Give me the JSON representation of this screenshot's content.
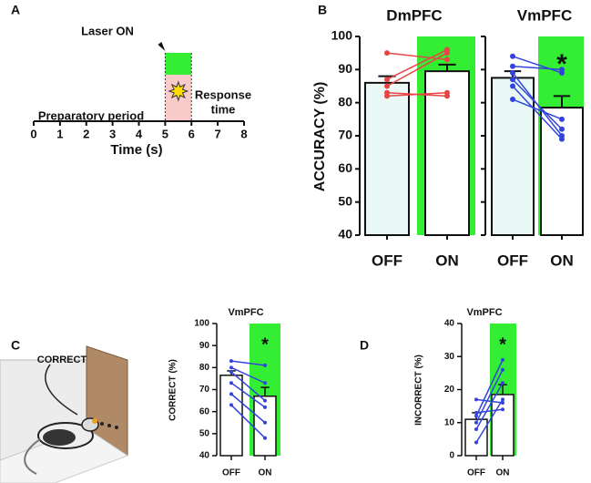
{
  "chart_data": [
    {
      "type": "timeline",
      "panel": "A",
      "annotation": "Laser ON",
      "period_label": "Preparatory period",
      "response_label": [
        "Response",
        "time"
      ],
      "xlim": [
        0,
        8
      ],
      "xticks": [
        0,
        1,
        2,
        3,
        4,
        5,
        6,
        7,
        8
      ],
      "xlabel": "Time (s)",
      "laser_window": [
        5,
        6
      ],
      "band_colors": [
        "#33ee33",
        "#f9caca"
      ]
    },
    {
      "type": "paired-bar",
      "panel": "B",
      "title": "DmPFC",
      "ylabel": "ACCURACY (%)",
      "categories": [
        "OFF",
        "ON"
      ],
      "values": [
        86,
        89.5
      ],
      "errors": [
        2,
        2
      ],
      "bar_colors": [
        "#eaf8f6",
        "#ffffff"
      ],
      "highlight_color": "#33ee33",
      "line_color": "#e84545",
      "subjects": [
        [
          95,
          93
        ],
        [
          87,
          96
        ],
        [
          85,
          95
        ],
        [
          83,
          82
        ],
        [
          82,
          83
        ]
      ],
      "ylim": [
        40,
        100
      ],
      "yticks": [
        40,
        50,
        60,
        70,
        80,
        90,
        100
      ]
    },
    {
      "type": "paired-bar",
      "title": "VmPFC",
      "categories": [
        "OFF",
        "ON"
      ],
      "values": [
        87.5,
        78.5
      ],
      "errors": [
        2,
        3.5
      ],
      "bar_colors": [
        "#eaf8f6",
        "#ffffff"
      ],
      "highlight_color": "#33ee33",
      "line_color": "#3344dd",
      "subjects": [
        [
          94,
          89
        ],
        [
          91,
          90
        ],
        [
          89,
          70
        ],
        [
          87,
          72
        ],
        [
          85,
          69
        ],
        [
          81,
          75
        ]
      ],
      "annotation": "*",
      "ylim": [
        40,
        100
      ],
      "yticks": [
        40,
        50,
        60,
        70,
        80,
        90,
        100
      ]
    },
    {
      "type": "paired-bar",
      "panel": "C",
      "image_label": "CORRECT",
      "title": "VmPFC",
      "ylabel": "CORRECT (%)",
      "categories": [
        "OFF",
        "ON"
      ],
      "values": [
        76.5,
        67
      ],
      "errors": [
        2,
        4
      ],
      "bar_colors": [
        "#ffffff",
        "#ffffff"
      ],
      "highlight_color": "#33ee33",
      "line_color": "#3344dd",
      "subjects": [
        [
          83,
          81
        ],
        [
          80,
          73
        ],
        [
          78,
          65
        ],
        [
          73,
          62
        ],
        [
          68,
          55
        ],
        [
          63,
          48
        ]
      ],
      "annotation": "*",
      "ylim": [
        40,
        100
      ],
      "yticks": [
        40,
        50,
        60,
        70,
        80,
        90,
        100
      ]
    },
    {
      "type": "paired-bar",
      "panel": "D",
      "title": "VmPFC",
      "ylabel": "INCORRECT (%)",
      "categories": [
        "OFF",
        "ON"
      ],
      "values": [
        11,
        18.5
      ],
      "errors": [
        2,
        3
      ],
      "bar_colors": [
        "#ffffff",
        "#ffffff"
      ],
      "highlight_color": "#33ee33",
      "line_color": "#3344dd",
      "subjects": [
        [
          4,
          17
        ],
        [
          8,
          22
        ],
        [
          10,
          26
        ],
        [
          12,
          29
        ],
        [
          13,
          14
        ],
        [
          17,
          16
        ]
      ],
      "annotation": "*",
      "ylim": [
        0,
        40
      ],
      "yticks": [
        0,
        10,
        20,
        30,
        40
      ]
    }
  ]
}
